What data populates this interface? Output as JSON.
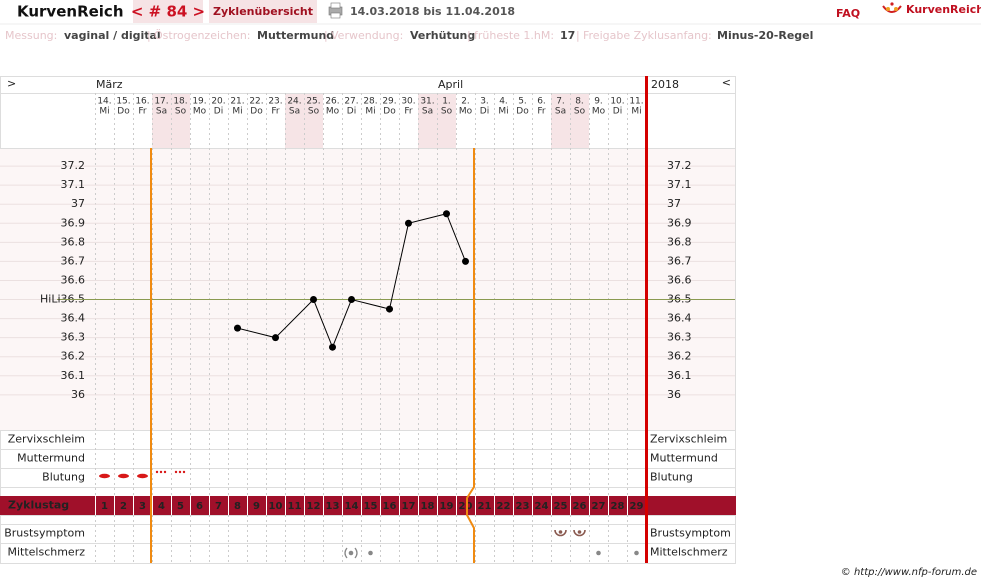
{
  "header": {
    "brand": "KurvenReich",
    "cycle_nav": "< # 84 >",
    "overview": "Zyklenübersicht",
    "period": "14.03.2018 bis 11.04.2018",
    "faq": "FAQ",
    "logo": "KurvenReich"
  },
  "settings": [
    {
      "label": "Messung:",
      "value": "vaginal / digital"
    },
    {
      "label": "Östrogenzeichen:",
      "value": "Muttermund"
    },
    {
      "label": "Verwendung:",
      "value": "Verhütung"
    },
    {
      "label": "früheste 1.hM:",
      "value": 17
    },
    {
      "label": "Freigabe Zyklusanfang:",
      "value": "Minus-20-Regel"
    }
  ],
  "separator": "|",
  "chart_data": {
    "type": "line",
    "nav_left": ">",
    "nav_right": "<",
    "year": "2018",
    "month_labels": [
      "März",
      null,
      null,
      null,
      null,
      null,
      null,
      null,
      null,
      null,
      null,
      null,
      null,
      null,
      null,
      null,
      null,
      null,
      "April",
      null,
      null,
      null,
      null,
      null,
      null,
      null,
      null,
      null,
      null
    ],
    "dates": [
      "14.",
      "15.",
      "16.",
      "17.",
      "18.",
      "19.",
      "20.",
      "21.",
      "22.",
      "23.",
      "24.",
      "25.",
      "26.",
      "27.",
      "28.",
      "29.",
      "30.",
      "31.",
      "1.",
      "2.",
      "3.",
      "4.",
      "5.",
      "6.",
      "7.",
      "8.",
      "9.",
      "10.",
      "11."
    ],
    "weekdays": [
      "Mi",
      "Do",
      "Fr",
      "Sa",
      "So",
      "Mo",
      "Di",
      "Mi",
      "Do",
      "Fr",
      "Sa",
      "So",
      "Mo",
      "Di",
      "Mi",
      "Do",
      "Fr",
      "Sa",
      "So",
      "Mo",
      "Di",
      "Mi",
      "Do",
      "Fr",
      "Sa",
      "So",
      "Mo",
      "Di",
      "Mi"
    ],
    "cycle_days": [
      1,
      2,
      3,
      4,
      5,
      6,
      7,
      8,
      9,
      10,
      11,
      12,
      13,
      14,
      15,
      16,
      17,
      18,
      19,
      20,
      21,
      22,
      23,
      24,
      25,
      26,
      27,
      28,
      29
    ],
    "cycle_day_colors": [
      "#ffffff",
      "#ffffff",
      "#ffffff",
      "#ffa500",
      "#ffa500",
      "#ffa500",
      "#ffa500",
      "#ffa500",
      "#ffa500",
      "#ffa500",
      "#ffa500",
      "#ffa500",
      "#ffa500",
      "#ffa500",
      "#ffa500",
      "#ffa500",
      "#ffa500",
      "#ffa500",
      "#ffcc66",
      "#ffa500",
      "#ffffff",
      "#ffffff",
      "#ffffff",
      "#ffffff",
      "#ffffff",
      "#ffffff",
      "#ffffff",
      "#ffffff",
      "#ffffff"
    ],
    "x": [
      8,
      10,
      12,
      13,
      14,
      16,
      17,
      19,
      20
    ],
    "values": [
      36.35,
      36.3,
      36.5,
      36.25,
      36.5,
      36.45,
      36.9,
      36.95,
      36.7
    ],
    "color": "#000000",
    "xlim": [
      0.5,
      29.5
    ],
    "ylim": [
      35.8,
      37.3
    ],
    "yticks": [
      36,
      36.1,
      36.2,
      36.3,
      36.4,
      36.5,
      36.6,
      36.7,
      36.8,
      36.9,
      37,
      37.1,
      37.2
    ],
    "grid": true,
    "hili": {
      "label": "HiLi",
      "value": 36.5,
      "color": "#8a9a50"
    },
    "rows": [
      {
        "label": "Zervixschleim",
        "color": "#e07a10"
      },
      {
        "label": "Muttermund",
        "color": "#4a5fc0"
      },
      {
        "label": "Blutung",
        "color": "#111111"
      },
      {
        "label": "Zyklustag",
        "color": "#ffffff"
      },
      {
        "label": "Brustsymptom",
        "color": "#111111"
      },
      {
        "label": "Mittelschmerz",
        "color": "#111111"
      }
    ]
  },
  "footer": "© http://www.nfp-forum.de"
}
